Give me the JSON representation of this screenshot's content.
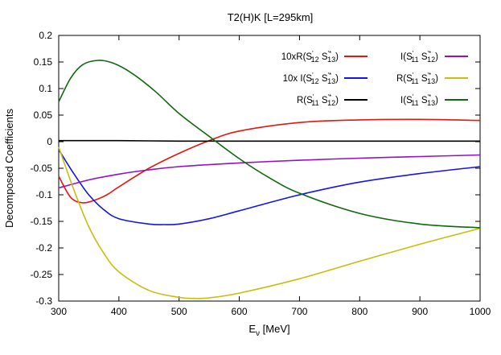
{
  "chart_data": {
    "type": "line",
    "title": "T2(H)K [L=295km]",
    "xlabel": {
      "main": "E",
      "sub": "ν",
      "rest": " [MeV]"
    },
    "ylabel": "Decomposed Coefficients",
    "xlim": [
      300,
      1000
    ],
    "ylim": [
      -0.3,
      0.2
    ],
    "xticks": [
      300,
      400,
      500,
      600,
      700,
      800,
      900,
      1000
    ],
    "yticks": [
      -0.3,
      -0.25,
      -0.2,
      -0.15,
      -0.1,
      -0.05,
      0,
      0.05,
      0.1,
      0.15,
      0.2
    ],
    "ytick_labels": [
      "-0.3",
      "-0.25",
      "-0.2",
      "-0.15",
      "-0.1",
      "-0.05",
      "0",
      "0.05",
      "0.1",
      "0.15",
      "0.2"
    ],
    "grid": false,
    "legend_position": "top-right",
    "series": [
      {
        "name": "10xR(S'12 S'*13)",
        "legend": {
          "pre": "10xR(S",
          "a": "12",
          "b": "13",
          "post": ")"
        },
        "color": "#e8150f",
        "x": [
          300,
          320,
          340,
          360,
          380,
          400,
          450,
          500,
          550,
          600,
          700,
          800,
          900,
          1000
        ],
        "y": [
          -0.065,
          -0.105,
          -0.115,
          -0.11,
          -0.1,
          -0.085,
          -0.05,
          -0.022,
          0.002,
          0.02,
          0.036,
          0.041,
          0.042,
          0.04
        ]
      },
      {
        "name": "10x I(S'12 S'*13)",
        "legend": {
          "pre": "10x I(S",
          "a": "12",
          "b": "13",
          "post": ")"
        },
        "color": "#1414ee",
        "x": [
          300,
          325,
          350,
          375,
          400,
          450,
          475,
          500,
          550,
          600,
          700,
          800,
          900,
          1000
        ],
        "y": [
          -0.015,
          -0.06,
          -0.1,
          -0.128,
          -0.145,
          -0.155,
          -0.156,
          -0.155,
          -0.145,
          -0.13,
          -0.1,
          -0.076,
          -0.06,
          -0.047
        ]
      },
      {
        "name": "R(S'11 S'*12)",
        "legend": {
          "pre": "R(S",
          "a": "11",
          "b": "12",
          "post": ")"
        },
        "color": "#000000",
        "x": [
          300,
          400,
          500,
          600,
          700,
          800,
          900,
          1000
        ],
        "y": [
          0.002,
          0.002,
          0.001,
          0.001,
          0.001,
          0.001,
          0.001,
          0.001
        ]
      },
      {
        "name": "I(S'11 S'*12)",
        "legend": {
          "pre": "I(S",
          "a": "11",
          "b": "12",
          "post": ")"
        },
        "color": "#9310c8",
        "x": [
          300,
          350,
          400,
          450,
          500,
          600,
          700,
          800,
          900,
          1000
        ],
        "y": [
          -0.087,
          -0.072,
          -0.061,
          -0.053,
          -0.047,
          -0.04,
          -0.035,
          -0.031,
          -0.028,
          -0.025
        ]
      },
      {
        "name": "R(S'11 S'*13)",
        "legend": {
          "pre": "R(S",
          "a": "11",
          "b": "13",
          "post": ")"
        },
        "color": "#c8be0e",
        "x": [
          300,
          325,
          350,
          375,
          400,
          450,
          500,
          525,
          550,
          600,
          700,
          800,
          900,
          1000
        ],
        "y": [
          -0.01,
          -0.09,
          -0.16,
          -0.21,
          -0.245,
          -0.28,
          -0.293,
          -0.295,
          -0.294,
          -0.285,
          -0.258,
          -0.225,
          -0.193,
          -0.163
        ]
      },
      {
        "name": "I(S'11 S'*13)",
        "legend": {
          "pre": "I(S",
          "a": "11",
          "b": "13",
          "post": ")"
        },
        "color": "#0d6a0d",
        "x": [
          300,
          320,
          340,
          365,
          390,
          420,
          460,
          500,
          550,
          600,
          650,
          700,
          800,
          900,
          1000
        ],
        "y": [
          0.075,
          0.12,
          0.145,
          0.153,
          0.148,
          0.13,
          0.095,
          0.053,
          0.01,
          -0.032,
          -0.068,
          -0.097,
          -0.135,
          -0.155,
          -0.162
        ]
      }
    ]
  }
}
